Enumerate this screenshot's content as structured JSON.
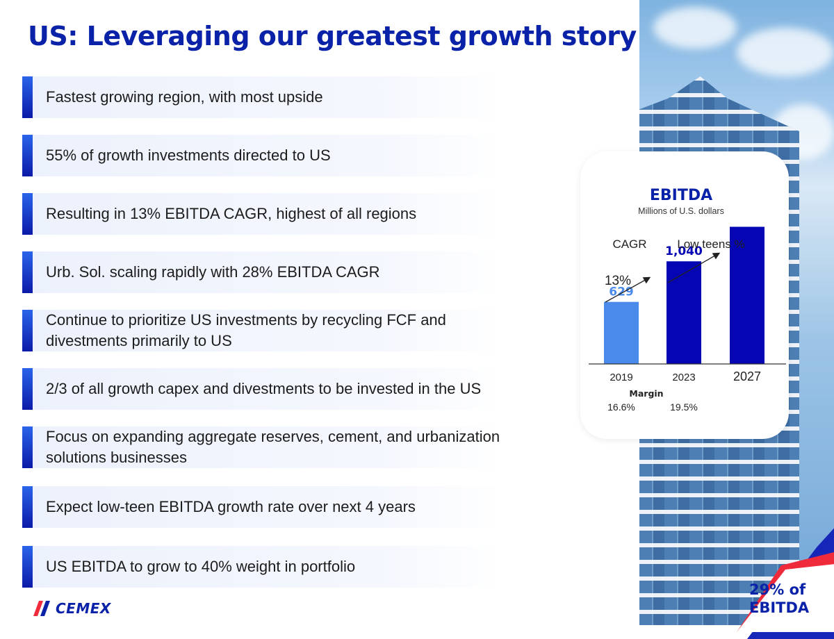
{
  "title": "US: Leveraging our greatest growth story",
  "bullets": [
    "Fastest growing region, with most upside",
    "55% of growth investments directed to US",
    "Resulting in 13% EBITDA CAGR, highest of all regions",
    "Urb. Sol. scaling rapidly with 28% EBITDA CAGR",
    "Continue to prioritize US investments by recycling FCF and divestments primarily to US",
    "2/3 of all growth capex and divestments to be invested in the US",
    "Focus on expanding aggregate reserves, cement, and urbanization solutions businesses",
    "Expect low-teen EBITDA growth rate over next 4 years",
    "US EBITDA to grow to 40% weight in portfolio"
  ],
  "badge": {
    "line1": "29% of",
    "line2": "EBITDA"
  },
  "logo": {
    "text": "CEMEX"
  },
  "colors": {
    "primary": "#0a22a8",
    "bar_2019": "#4a8aea",
    "bar_dark": "#0505b4",
    "red": "#ee2a3b"
  },
  "chart_data": {
    "type": "bar",
    "title": "EBITDA",
    "subtitle": "Millions of U.S. dollars",
    "categories": [
      "2019",
      "2023",
      "2027"
    ],
    "values": [
      629,
      1040,
      1390
    ],
    "data_labels": [
      "629",
      "1,040",
      ""
    ],
    "series_colors": [
      "#4a8aea",
      "#0505b4",
      "#0505b4"
    ],
    "ylim": [
      0,
      1450
    ],
    "xlabel": "",
    "ylabel": "",
    "cagr": {
      "header": "CAGR",
      "segments": [
        {
          "from": "2019",
          "to": "2023",
          "label": "13%"
        },
        {
          "from": "2023",
          "to": "2027",
          "label": "Low teens %"
        }
      ]
    },
    "margin": {
      "label": "Margin",
      "values": [
        {
          "year": "2019",
          "value": "16.6%"
        },
        {
          "year": "2023",
          "value": "19.5%"
        }
      ]
    }
  }
}
